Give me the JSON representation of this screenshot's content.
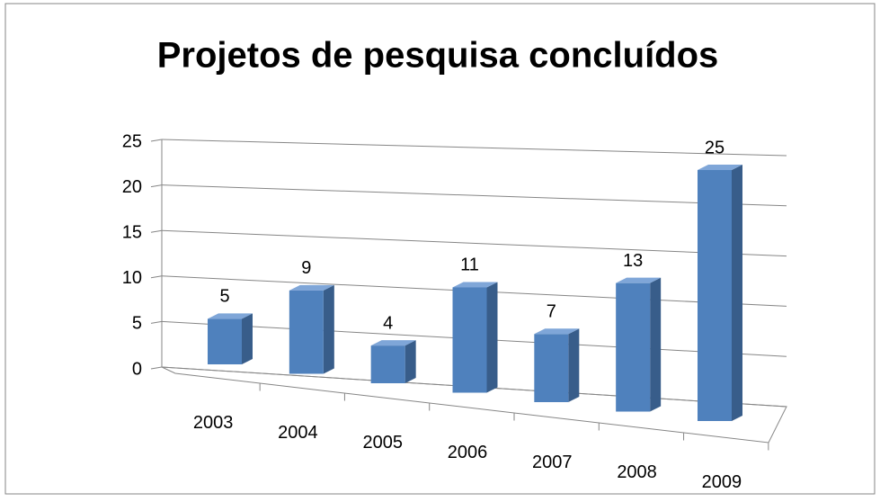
{
  "chart_data": {
    "type": "bar3d",
    "title": "Projetos de pesquisa concluídos",
    "categories": [
      "2003",
      "2004",
      "2005",
      "2006",
      "2007",
      "2008",
      "2009"
    ],
    "values": [
      5,
      9,
      4,
      11,
      7,
      13,
      25
    ],
    "color": "#4f81bd",
    "ylim": [
      0,
      25
    ],
    "yticks": [
      0,
      5,
      10,
      15,
      20,
      25
    ],
    "grid": true
  }
}
